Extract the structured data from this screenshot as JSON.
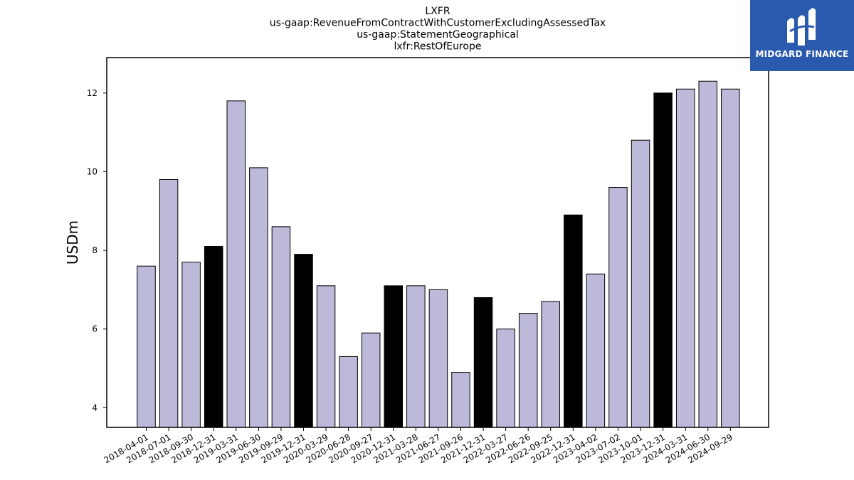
{
  "chart_data": {
    "type": "bar",
    "title_lines": [
      "LXFR",
      "us-gaap:RevenueFromContractWithCustomerExcludingAssessedTax",
      "us-gaap:StatementGeographical",
      "lxfr:RestOfEurope"
    ],
    "xlabel": "",
    "ylabel": "USDm",
    "ylim": [
      3.5,
      12.9
    ],
    "yticks": [
      4,
      6,
      8,
      10,
      12
    ],
    "grid": false,
    "categories": [
      "2018-04-01",
      "2018-07-01",
      "2018-09-30",
      "2018-12-31",
      "2019-03-31",
      "2019-06-30",
      "2019-09-29",
      "2019-12-31",
      "2020-03-29",
      "2020-06-28",
      "2020-09-27",
      "2020-12-31",
      "2021-03-28",
      "2021-06-27",
      "2021-09-26",
      "2021-12-31",
      "2022-03-27",
      "2022-06-26",
      "2022-09-25",
      "2022-12-31",
      "2023-04-02",
      "2023-07-02",
      "2023-10-01",
      "2023-12-31",
      "2024-03-31",
      "2024-06-30",
      "2024-09-29"
    ],
    "values": [
      7.6,
      9.8,
      7.7,
      8.1,
      11.8,
      10.1,
      8.6,
      7.9,
      7.1,
      5.3,
      5.9,
      7.1,
      7.1,
      7.0,
      4.9,
      6.8,
      6.0,
      6.4,
      6.7,
      8.9,
      7.4,
      9.6,
      10.8,
      12.0,
      12.1,
      12.3,
      12.1
    ],
    "highlight_indices": [
      3,
      7,
      11,
      15,
      19,
      23
    ],
    "colors": {
      "bar": "#bcb9d9",
      "highlight_bar": "#000000",
      "edge": "#000000"
    }
  },
  "logo": {
    "text": "MIDGARD FINANCE",
    "background": "#2a5aad"
  }
}
